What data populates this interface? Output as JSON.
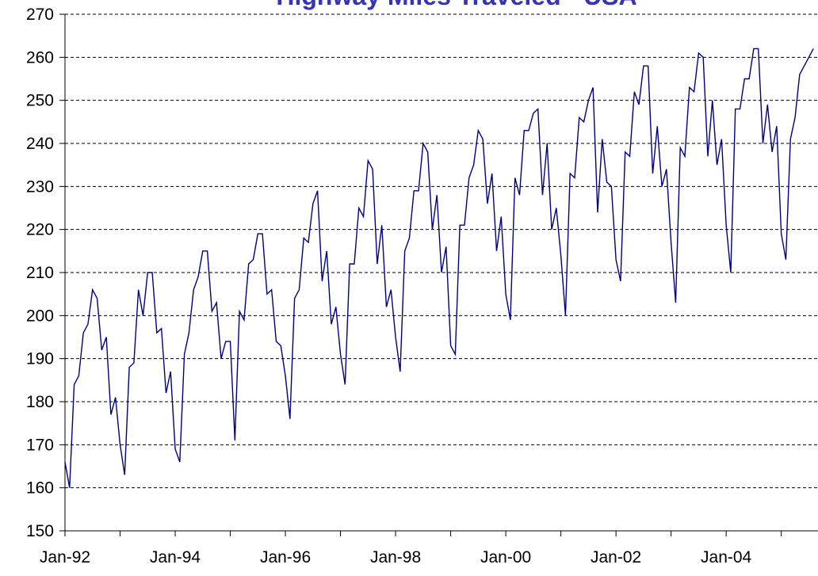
{
  "chart_data": {
    "type": "line",
    "title": "Highway Miles Traveled - USA",
    "x": [
      "1992-01",
      "1992-02",
      "1992-03",
      "1992-04",
      "1992-05",
      "1992-06",
      "1992-07",
      "1992-08",
      "1992-09",
      "1992-10",
      "1992-11",
      "1992-12",
      "1993-01",
      "1993-02",
      "1993-03",
      "1993-04",
      "1993-05",
      "1993-06",
      "1993-07",
      "1993-08",
      "1993-09",
      "1993-10",
      "1993-11",
      "1993-12",
      "1994-01",
      "1994-02",
      "1994-03",
      "1994-04",
      "1994-05",
      "1994-06",
      "1994-07",
      "1994-08",
      "1994-09",
      "1994-10",
      "1994-11",
      "1994-12",
      "1995-01",
      "1995-02",
      "1995-03",
      "1995-04",
      "1995-05",
      "1995-06",
      "1995-07",
      "1995-08",
      "1995-09",
      "1995-10",
      "1995-11",
      "1995-12",
      "1996-01",
      "1996-02",
      "1996-03",
      "1996-04",
      "1996-05",
      "1996-06",
      "1996-07",
      "1996-08",
      "1996-09",
      "1996-10",
      "1996-11",
      "1996-12",
      "1997-01",
      "1997-02",
      "1997-03",
      "1997-04",
      "1997-05",
      "1997-06",
      "1997-07",
      "1997-08",
      "1997-09",
      "1997-10",
      "1997-11",
      "1997-12",
      "1998-01",
      "1998-02",
      "1998-03",
      "1998-04",
      "1998-05",
      "1998-06",
      "1998-07",
      "1998-08",
      "1998-09",
      "1998-10",
      "1998-11",
      "1998-12",
      "1999-01",
      "1999-02",
      "1999-03",
      "1999-04",
      "1999-05",
      "1999-06",
      "1999-07",
      "1999-08",
      "1999-09",
      "1999-10",
      "1999-11",
      "1999-12",
      "2000-01",
      "2000-02",
      "2000-03",
      "2000-04",
      "2000-05",
      "2000-06",
      "2000-07",
      "2000-08",
      "2000-09",
      "2000-10",
      "2000-11",
      "2000-12",
      "2001-01",
      "2001-02",
      "2001-03",
      "2001-04",
      "2001-05",
      "2001-06",
      "2001-07",
      "2001-08",
      "2001-09",
      "2001-10",
      "2001-11",
      "2001-12",
      "2002-01",
      "2002-02",
      "2002-03",
      "2002-04",
      "2002-05",
      "2002-06",
      "2002-07",
      "2002-08",
      "2002-09",
      "2002-10",
      "2002-11",
      "2002-12",
      "2003-01",
      "2003-02",
      "2003-03",
      "2003-04",
      "2003-05",
      "2003-06",
      "2003-07",
      "2003-08",
      "2003-09",
      "2003-10",
      "2003-11",
      "2003-12",
      "2004-01",
      "2004-02",
      "2004-03",
      "2004-04",
      "2004-05",
      "2004-06",
      "2004-07",
      "2004-08",
      "2004-09",
      "2004-10",
      "2004-11",
      "2004-12",
      "2005-01",
      "2005-02",
      "2005-03",
      "2005-04",
      "2005-05",
      "2005-06",
      "2005-07",
      "2005-08"
    ],
    "values": [
      166,
      160,
      184,
      186,
      196,
      198,
      206,
      204,
      192,
      195,
      177,
      181,
      170,
      163,
      188,
      189,
      206,
      200,
      210,
      210,
      196,
      197,
      182,
      187,
      169,
      166,
      191,
      196,
      206,
      209,
      215,
      215,
      201,
      203,
      190,
      194,
      194,
      171,
      201,
      199,
      212,
      213,
      219,
      219,
      205,
      206,
      194,
      193,
      186,
      176,
      204,
      206,
      218,
      217,
      226,
      229,
      208,
      215,
      198,
      202,
      191,
      184,
      212,
      212,
      225,
      223,
      236,
      234,
      212,
      221,
      202,
      206,
      195,
      187,
      215,
      218,
      229,
      229,
      240,
      238,
      220,
      228,
      210,
      216,
      193,
      191,
      221,
      221,
      232,
      235,
      243,
      241,
      226,
      233,
      215,
      223,
      205,
      199,
      232,
      228,
      243,
      243,
      247,
      248,
      228,
      240,
      220,
      225,
      214,
      200,
      233,
      232,
      246,
      245,
      250,
      253,
      224,
      241,
      231,
      230,
      213,
      208,
      238,
      237,
      252,
      249,
      258,
      258,
      233,
      244,
      230,
      234,
      217,
      203,
      239,
      237,
      253,
      252,
      261,
      260,
      237,
      250,
      235,
      241,
      221,
      210,
      248,
      248,
      255,
      255,
      262,
      262,
      240,
      249,
      238,
      244,
      219,
      213,
      241,
      246,
      256,
      258,
      260,
      262
    ],
    "color": "#000080",
    "xlim": [
      "1992-01",
      "2005-09"
    ],
    "xticks": [
      {
        "value": "1992-01",
        "label": "Jan-92"
      },
      {
        "value": "1994-01",
        "label": "Jan-94"
      },
      {
        "value": "1996-01",
        "label": "Jan-96"
      },
      {
        "value": "1998-01",
        "label": "Jan-98"
      },
      {
        "value": "2000-01",
        "label": "Jan-00"
      },
      {
        "value": "2002-01",
        "label": "Jan-02"
      },
      {
        "value": "2004-01",
        "label": "Jan-04"
      }
    ],
    "xticks_minor": [
      "1993-01",
      "1995-01",
      "1997-01",
      "1999-01",
      "2001-01",
      "2003-01",
      "2005-01"
    ],
    "ylim": [
      150,
      270
    ],
    "yticks": [
      150,
      160,
      170,
      180,
      190,
      200,
      210,
      220,
      230,
      240,
      250,
      260,
      270
    ],
    "grid": true
  }
}
